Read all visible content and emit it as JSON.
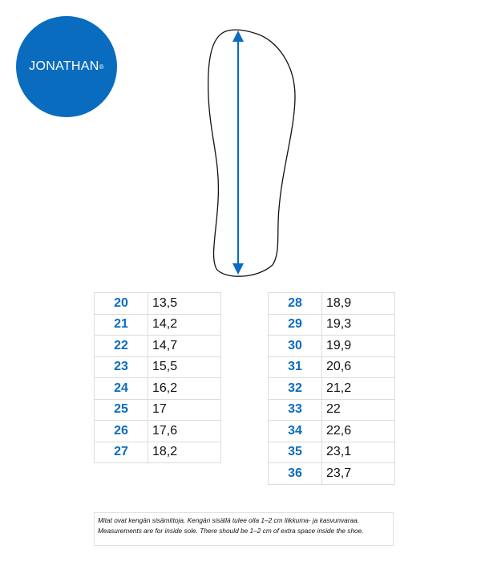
{
  "brand": {
    "logo_text": "JONATHAN",
    "trademark": "®",
    "color": "#0a6cbf"
  },
  "table_left": [
    {
      "size": "20",
      "length": "13,5"
    },
    {
      "size": "21",
      "length": "14,2"
    },
    {
      "size": "22",
      "length": "14,7"
    },
    {
      "size": "23",
      "length": "15,5"
    },
    {
      "size": "24",
      "length": "16,2"
    },
    {
      "size": "25",
      "length": "17"
    },
    {
      "size": "26",
      "length": "17,6"
    },
    {
      "size": "27",
      "length": "18,2"
    }
  ],
  "table_right": [
    {
      "size": "28",
      "length": "18,9"
    },
    {
      "size": "29",
      "length": "19,3"
    },
    {
      "size": "30",
      "length": "19,9"
    },
    {
      "size": "31",
      "length": "20,6"
    },
    {
      "size": "32",
      "length": "21,2"
    },
    {
      "size": "33",
      "length": "22"
    },
    {
      "size": "34",
      "length": "22,6"
    },
    {
      "size": "35",
      "length": "23,1"
    },
    {
      "size": "36",
      "length": "23,7"
    }
  ],
  "note": {
    "fi": "Mitat ovat kengän sisämittoja. Kengän sisällä tulee olla 1–2 cm liikkuma- ja kasvunvaraa.",
    "en": "Measurements are for inside sole. There should be  1–2 cm of extra space inside the shoe."
  }
}
